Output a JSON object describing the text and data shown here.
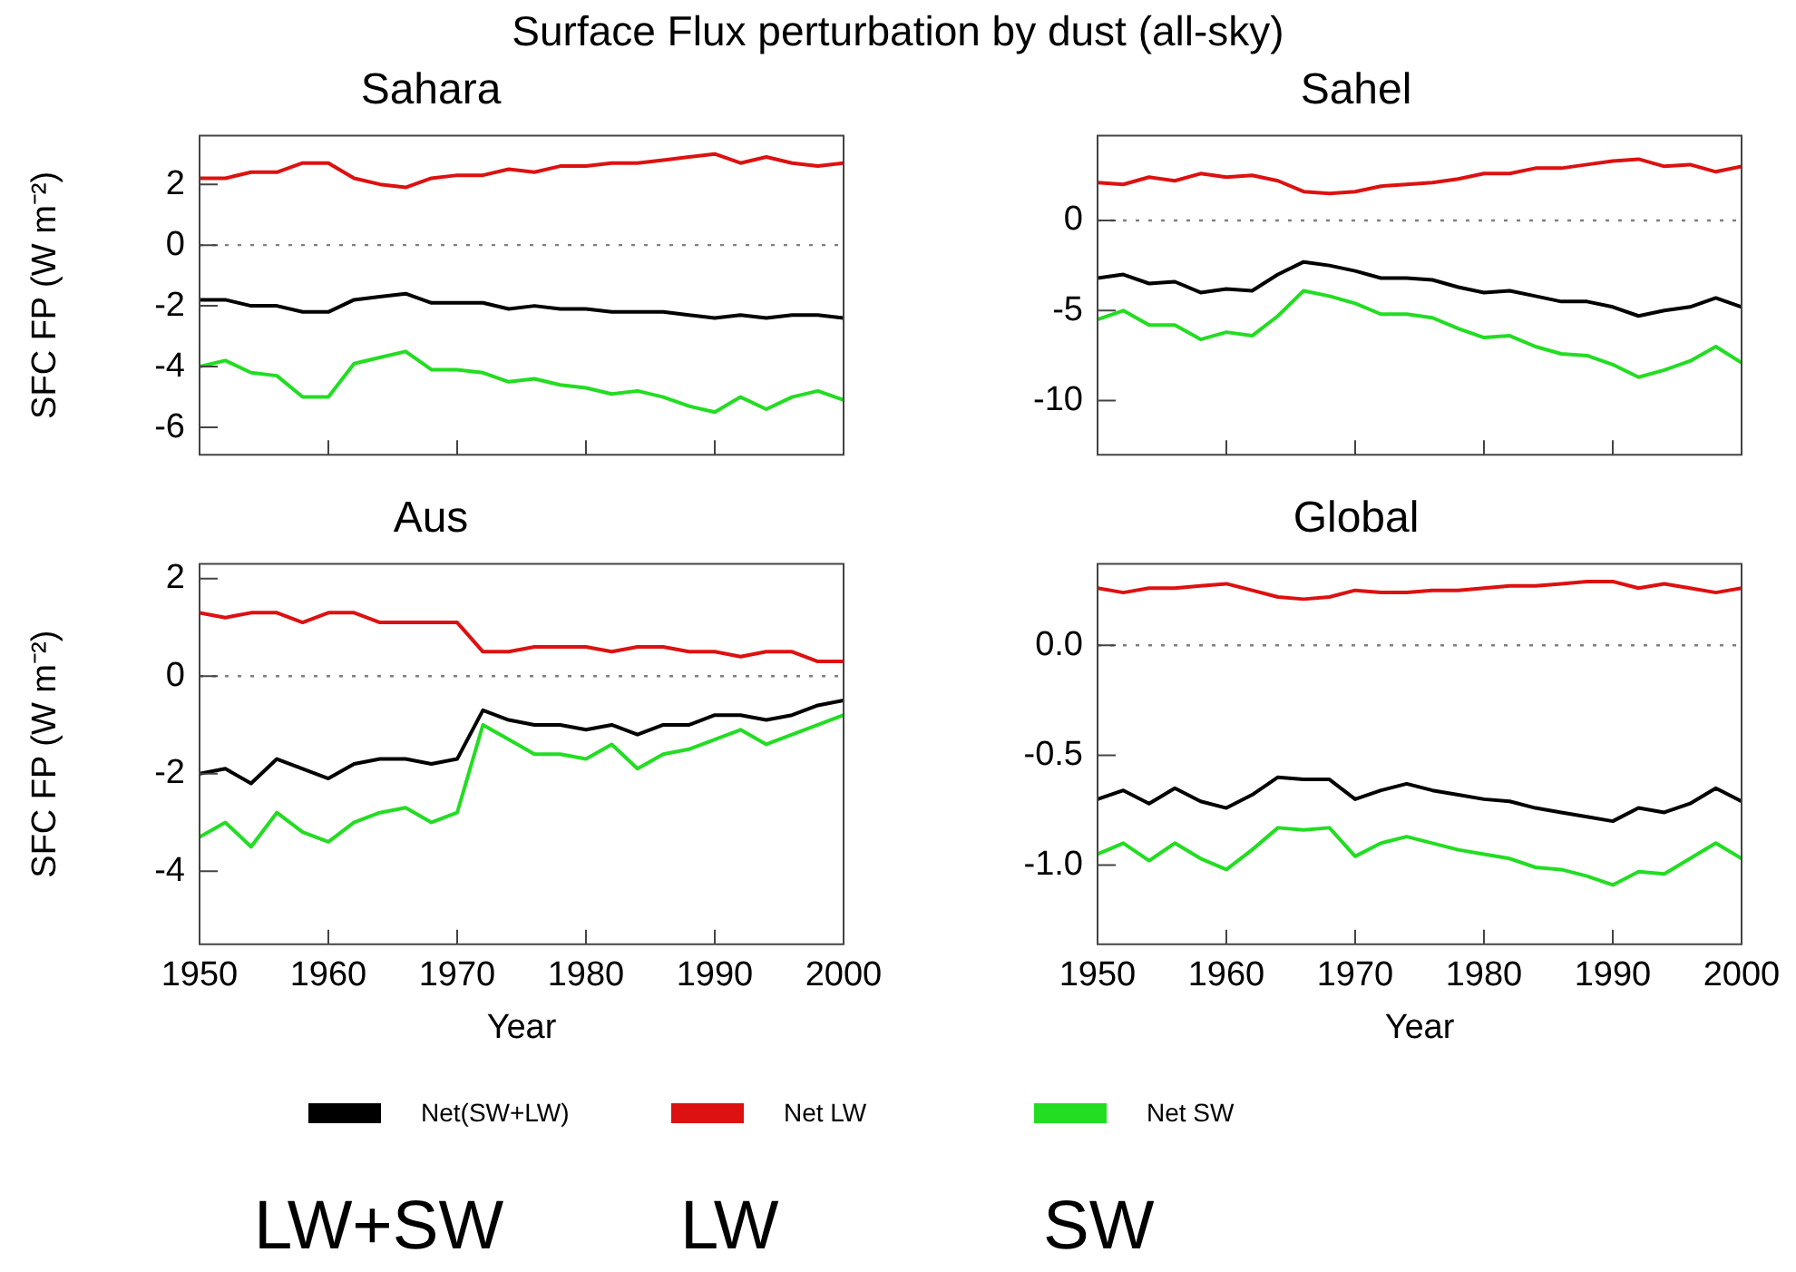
{
  "chart_data": [
    {
      "type": "line",
      "title": "Sahara",
      "ylabel": "SFC FP (W m⁻²)",
      "tick_labels": "y",
      "legend": "bottom",
      "line_style": "solid",
      "annotations": [
        "Surface Flux perturbation by dust (all-sky)",
        "LW+SW",
        "LW",
        "SW"
      ],
      "x": [
        1950,
        1952,
        1954,
        1956,
        1958,
        1960,
        1962,
        1964,
        1966,
        1968,
        1970,
        1972,
        1974,
        1976,
        1978,
        1980,
        1982,
        1984,
        1986,
        1988,
        1990,
        1992,
        1994,
        1996,
        1998,
        2000
      ],
      "xlim": [
        1950,
        2000
      ],
      "xticks": [
        1950,
        1960,
        1970,
        1980,
        1990,
        2000
      ],
      "ylim": [
        -6.9,
        3.6
      ],
      "yticks": [
        -6,
        -4,
        -2,
        0,
        2
      ],
      "ref_lines": [
        {
          "axis": "y",
          "value": 0,
          "line_style": "dotted",
          "color": "#808080"
        }
      ],
      "series": [
        {
          "name": "Net(SW+LW)",
          "color": "#000000",
          "values": [
            -1.8,
            -1.8,
            -2.0,
            -2.0,
            -2.2,
            -2.2,
            -1.8,
            -1.7,
            -1.6,
            -1.9,
            -1.9,
            -1.9,
            -2.1,
            -2.0,
            -2.1,
            -2.1,
            -2.2,
            -2.2,
            -2.2,
            -2.3,
            -2.4,
            -2.3,
            -2.4,
            -2.3,
            -2.3,
            -2.4
          ]
        },
        {
          "name": "Net LW",
          "color": "#dd1111",
          "values": [
            2.2,
            2.2,
            2.4,
            2.4,
            2.7,
            2.7,
            2.2,
            2.0,
            1.9,
            2.2,
            2.3,
            2.3,
            2.5,
            2.4,
            2.6,
            2.6,
            2.7,
            2.7,
            2.8,
            2.9,
            3.0,
            2.7,
            2.9,
            2.7,
            2.6,
            2.7
          ]
        },
        {
          "name": "Net SW",
          "color": "#22dd22",
          "values": [
            -4.0,
            -3.8,
            -4.2,
            -4.3,
            -5.0,
            -5.0,
            -3.9,
            -3.7,
            -3.5,
            -4.1,
            -4.1,
            -4.2,
            -4.5,
            -4.4,
            -4.6,
            -4.7,
            -4.9,
            -4.8,
            -5.0,
            -5.3,
            -5.5,
            -5.0,
            -5.4,
            -5.0,
            -4.8,
            -5.1
          ]
        }
      ]
    },
    {
      "type": "line",
      "title": "Sahel",
      "tick_labels": "y",
      "line_style": "solid",
      "x": [
        1950,
        1952,
        1954,
        1956,
        1958,
        1960,
        1962,
        1964,
        1966,
        1968,
        1970,
        1972,
        1974,
        1976,
        1978,
        1980,
        1982,
        1984,
        1986,
        1988,
        1990,
        1992,
        1994,
        1996,
        1998,
        2000
      ],
      "xlim": [
        1950,
        2000
      ],
      "xticks": [
        1950,
        1960,
        1970,
        1980,
        1990,
        2000
      ],
      "ylim": [
        -13,
        4.7
      ],
      "yticks": [
        -10,
        -5,
        0
      ],
      "ref_lines": [
        {
          "axis": "y",
          "value": 0,
          "line_style": "dotted",
          "color": "#808080"
        }
      ],
      "series": [
        {
          "color": "#000000",
          "values": [
            -3.2,
            -3.0,
            -3.5,
            -3.4,
            -4.0,
            -3.8,
            -3.9,
            -3.0,
            -2.3,
            -2.5,
            -2.8,
            -3.2,
            -3.2,
            -3.3,
            -3.7,
            -4.0,
            -3.9,
            -4.2,
            -4.5,
            -4.5,
            -4.8,
            -5.3,
            -5.0,
            -4.8,
            -4.3,
            -4.8
          ]
        },
        {
          "color": "#dd1111",
          "values": [
            2.1,
            2.0,
            2.4,
            2.2,
            2.6,
            2.4,
            2.5,
            2.2,
            1.6,
            1.5,
            1.6,
            1.9,
            2.0,
            2.1,
            2.3,
            2.6,
            2.6,
            2.9,
            2.9,
            3.1,
            3.3,
            3.4,
            3.0,
            3.1,
            2.7,
            3.0
          ]
        },
        {
          "color": "#22dd22",
          "values": [
            -5.5,
            -5.0,
            -5.8,
            -5.8,
            -6.6,
            -6.2,
            -6.4,
            -5.3,
            -3.9,
            -4.2,
            -4.6,
            -5.2,
            -5.2,
            -5.4,
            -6.0,
            -6.5,
            -6.4,
            -7.0,
            -7.4,
            -7.5,
            -8.0,
            -8.7,
            -8.3,
            -7.8,
            -7.0,
            -7.9
          ]
        }
      ]
    },
    {
      "type": "line",
      "title": "Aus",
      "xlabel": "Year",
      "ylabel": "SFC FP (W m⁻²)",
      "line_style": "solid",
      "x": [
        1950,
        1952,
        1954,
        1956,
        1958,
        1960,
        1962,
        1964,
        1966,
        1968,
        1970,
        1972,
        1974,
        1976,
        1978,
        1980,
        1982,
        1984,
        1986,
        1988,
        1990,
        1992,
        1994,
        1996,
        1998,
        2000
      ],
      "xlim": [
        1950,
        2000
      ],
      "xticks": [
        1950,
        1960,
        1970,
        1980,
        1990,
        2000
      ],
      "ylim": [
        -5.5,
        2.3
      ],
      "yticks": [
        -4,
        -2,
        0,
        2
      ],
      "ref_lines": [
        {
          "axis": "y",
          "value": 0,
          "line_style": "dotted",
          "color": "#808080"
        }
      ],
      "series": [
        {
          "color": "#000000",
          "values": [
            -2.0,
            -1.9,
            -2.2,
            -1.7,
            -1.9,
            -2.1,
            -1.8,
            -1.7,
            -1.7,
            -1.8,
            -1.7,
            -0.7,
            -0.9,
            -1.0,
            -1.0,
            -1.1,
            -1.0,
            -1.2,
            -1.0,
            -1.0,
            -0.8,
            -0.8,
            -0.9,
            -0.8,
            -0.6,
            -0.5
          ]
        },
        {
          "color": "#dd1111",
          "values": [
            1.3,
            1.2,
            1.3,
            1.3,
            1.1,
            1.3,
            1.3,
            1.1,
            1.1,
            1.1,
            1.1,
            0.5,
            0.5,
            0.6,
            0.6,
            0.6,
            0.5,
            0.6,
            0.6,
            0.5,
            0.5,
            0.4,
            0.5,
            0.5,
            0.3,
            0.3
          ]
        },
        {
          "color": "#22dd22",
          "values": [
            -3.3,
            -3.0,
            -3.5,
            -2.8,
            -3.2,
            -3.4,
            -3.0,
            -2.8,
            -2.7,
            -3.0,
            -2.8,
            -1.0,
            -1.3,
            -1.6,
            -1.6,
            -1.7,
            -1.4,
            -1.9,
            -1.6,
            -1.5,
            -1.3,
            -1.1,
            -1.4,
            -1.2,
            -1.0,
            -0.8
          ]
        }
      ]
    },
    {
      "type": "line",
      "title": "Global",
      "xlabel": "Year",
      "line_style": "solid",
      "x": [
        1950,
        1952,
        1954,
        1956,
        1958,
        1960,
        1962,
        1964,
        1966,
        1968,
        1970,
        1972,
        1974,
        1976,
        1978,
        1980,
        1982,
        1984,
        1986,
        1988,
        1990,
        1992,
        1994,
        1996,
        1998,
        2000
      ],
      "xlim": [
        1950,
        2000
      ],
      "xticks": [
        1950,
        1960,
        1970,
        1980,
        1990,
        2000
      ],
      "ylim": [
        -1.36,
        0.37
      ],
      "yticks": [
        {
          "value": -1,
          "label": "-1.0"
        },
        {
          "value": -0.5,
          "label": "-0.5"
        },
        {
          "value": 0,
          "label": "0.0"
        }
      ],
      "ref_lines": [
        {
          "axis": "y",
          "value": 0,
          "line_style": "dotted",
          "color": "#808080"
        }
      ],
      "series": [
        {
          "color": "#000000",
          "values": [
            -0.7,
            -0.66,
            -0.72,
            -0.65,
            -0.71,
            -0.74,
            -0.68,
            -0.6,
            -0.61,
            -0.61,
            -0.7,
            -0.66,
            -0.63,
            -0.66,
            -0.68,
            -0.7,
            -0.71,
            -0.74,
            -0.76,
            -0.78,
            -0.8,
            -0.74,
            -0.76,
            -0.72,
            -0.65,
            -0.71
          ]
        },
        {
          "color": "#dd1111",
          "values": [
            0.26,
            0.24,
            0.26,
            0.26,
            0.27,
            0.28,
            0.25,
            0.22,
            0.21,
            0.22,
            0.25,
            0.24,
            0.24,
            0.25,
            0.25,
            0.26,
            0.27,
            0.27,
            0.28,
            0.29,
            0.29,
            0.26,
            0.28,
            0.26,
            0.24,
            0.26
          ]
        },
        {
          "color": "#22dd22",
          "values": [
            -0.95,
            -0.9,
            -0.98,
            -0.9,
            -0.97,
            -1.02,
            -0.93,
            -0.83,
            -0.84,
            -0.83,
            -0.96,
            -0.9,
            -0.87,
            -0.9,
            -0.93,
            -0.95,
            -0.97,
            -1.01,
            -1.02,
            -1.05,
            -1.09,
            -1.03,
            -1.04,
            -0.97,
            -0.9,
            -0.97
          ]
        }
      ]
    }
  ]
}
